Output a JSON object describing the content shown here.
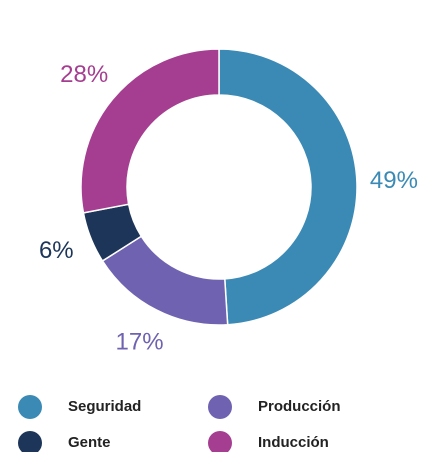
{
  "chart_data": {
    "type": "donut",
    "categories": [
      "Seguridad",
      "Producción",
      "Gente",
      "Inducción"
    ],
    "values": [
      49,
      17,
      6,
      28
    ],
    "value_labels": [
      "49%",
      "17%",
      "6%",
      "28%"
    ],
    "colors": [
      "#3a8ab5",
      "#6f62b0",
      "#1c3558",
      "#a53d90"
    ]
  }
}
